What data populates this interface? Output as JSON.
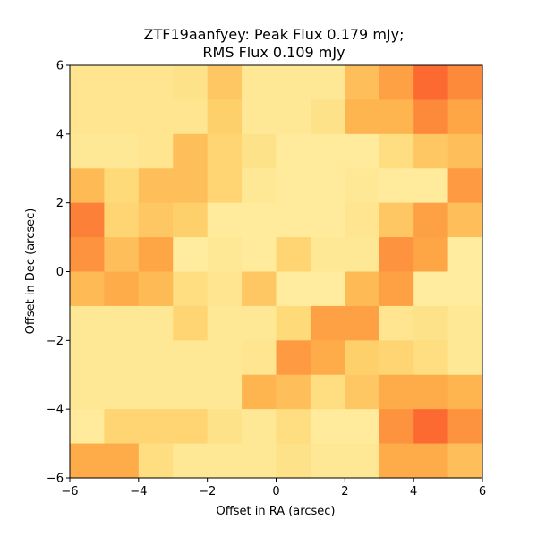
{
  "chart_data": {
    "type": "heatmap",
    "title": "ZTF19aanfyey: Peak Flux 0.179 mJy;",
    "subtitle": "RMS Flux 0.109 mJy",
    "xlabel": "Offset in RA (arcsec)",
    "ylabel": "Offset in Dec (arcsec)",
    "xlim": [
      -6,
      6
    ],
    "ylim": [
      -6,
      6
    ],
    "xticks": [
      -6,
      -4,
      -2,
      0,
      2,
      4,
      6
    ],
    "yticks": [
      -6,
      -4,
      -2,
      0,
      2,
      4,
      6
    ],
    "xtick_labels": [
      "−6",
      "−4",
      "−2",
      "0",
      "2",
      "4",
      "6"
    ],
    "ytick_labels": [
      "−6",
      "−4",
      "−2",
      "0",
      "2",
      "4",
      "6"
    ],
    "colormap": "YlOrRd",
    "grid": false,
    "rows_top_to_bottom": [
      [
        0.2,
        0.2,
        0.2,
        0.22,
        0.35,
        0.18,
        0.18,
        0.18,
        0.38,
        0.5,
        0.65,
        0.58
      ],
      [
        0.2,
        0.2,
        0.2,
        0.2,
        0.32,
        0.18,
        0.18,
        0.22,
        0.42,
        0.42,
        0.58,
        0.48
      ],
      [
        0.18,
        0.18,
        0.2,
        0.38,
        0.3,
        0.22,
        0.16,
        0.16,
        0.16,
        0.25,
        0.35,
        0.38
      ],
      [
        0.4,
        0.28,
        0.38,
        0.38,
        0.3,
        0.18,
        0.16,
        0.16,
        0.18,
        0.16,
        0.16,
        0.52
      ],
      [
        0.6,
        0.3,
        0.35,
        0.32,
        0.16,
        0.16,
        0.16,
        0.16,
        0.2,
        0.35,
        0.5,
        0.38
      ],
      [
        0.55,
        0.38,
        0.48,
        0.15,
        0.18,
        0.16,
        0.3,
        0.18,
        0.18,
        0.55,
        0.48,
        0.15
      ],
      [
        0.4,
        0.45,
        0.4,
        0.25,
        0.2,
        0.35,
        0.15,
        0.15,
        0.4,
        0.5,
        0.15,
        0.15
      ],
      [
        0.18,
        0.18,
        0.18,
        0.3,
        0.18,
        0.18,
        0.28,
        0.5,
        0.5,
        0.2,
        0.22,
        0.18
      ],
      [
        0.18,
        0.18,
        0.18,
        0.18,
        0.18,
        0.2,
        0.52,
        0.45,
        0.32,
        0.3,
        0.25,
        0.18
      ],
      [
        0.18,
        0.18,
        0.18,
        0.18,
        0.18,
        0.42,
        0.38,
        0.25,
        0.35,
        0.45,
        0.45,
        0.42
      ],
      [
        0.16,
        0.3,
        0.3,
        0.3,
        0.22,
        0.18,
        0.25,
        0.16,
        0.16,
        0.55,
        0.65,
        0.55
      ],
      [
        0.45,
        0.45,
        0.25,
        0.18,
        0.18,
        0.18,
        0.22,
        0.18,
        0.18,
        0.45,
        0.45,
        0.38
      ]
    ]
  }
}
